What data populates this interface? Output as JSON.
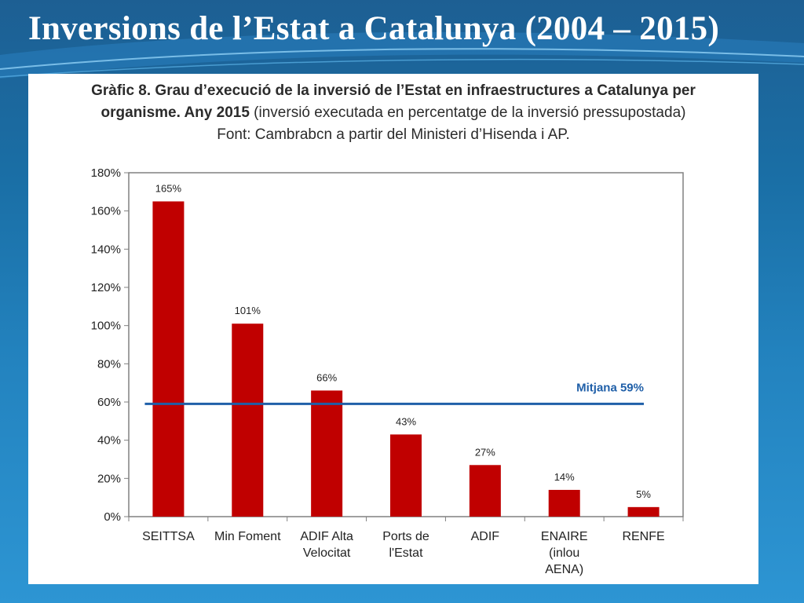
{
  "slide": {
    "title": "Inversions de l’Estat a Catalunya (2004 – 2015)"
  },
  "chart_heading": {
    "line1": "Gràfic 8. Grau d’execució de la inversió de l’Estat en infraestructures a Catalunya per",
    "line2_bold": "organisme. Any 2015",
    "line2_rest": " (inversió executada en percentatge de la inversió pressupostada)",
    "line3": "Font: Cambrabcn a partir del Ministeri d’Hisenda i AP."
  },
  "chart_data": {
    "type": "bar",
    "categories": [
      [
        "SEITTSA"
      ],
      [
        "Min Foment"
      ],
      [
        "ADIF Alta",
        "Velocitat"
      ],
      [
        "Ports de",
        "l'Estat"
      ],
      [
        "ADIF"
      ],
      [
        "ENAIRE",
        "(inlou",
        "AENA)"
      ],
      [
        "RENFE"
      ]
    ],
    "values": [
      165,
      101,
      66,
      43,
      27,
      14,
      5
    ],
    "value_labels": [
      "165%",
      "101%",
      "66%",
      "43%",
      "27%",
      "14%",
      "5%"
    ],
    "y_ticks": [
      0,
      20,
      40,
      60,
      80,
      100,
      120,
      140,
      160,
      180
    ],
    "y_tick_labels": [
      "0%",
      "20%",
      "40%",
      "60%",
      "80%",
      "100%",
      "120%",
      "140%",
      "160%",
      "180%"
    ],
    "ylim": [
      0,
      180
    ],
    "mean_line": {
      "value": 59,
      "label": "Mitjana 59%"
    },
    "grid": false,
    "colors": {
      "bar": "#c00000",
      "mean_line": "#1f5fa8",
      "mean_label": "#1f5fa8"
    }
  }
}
